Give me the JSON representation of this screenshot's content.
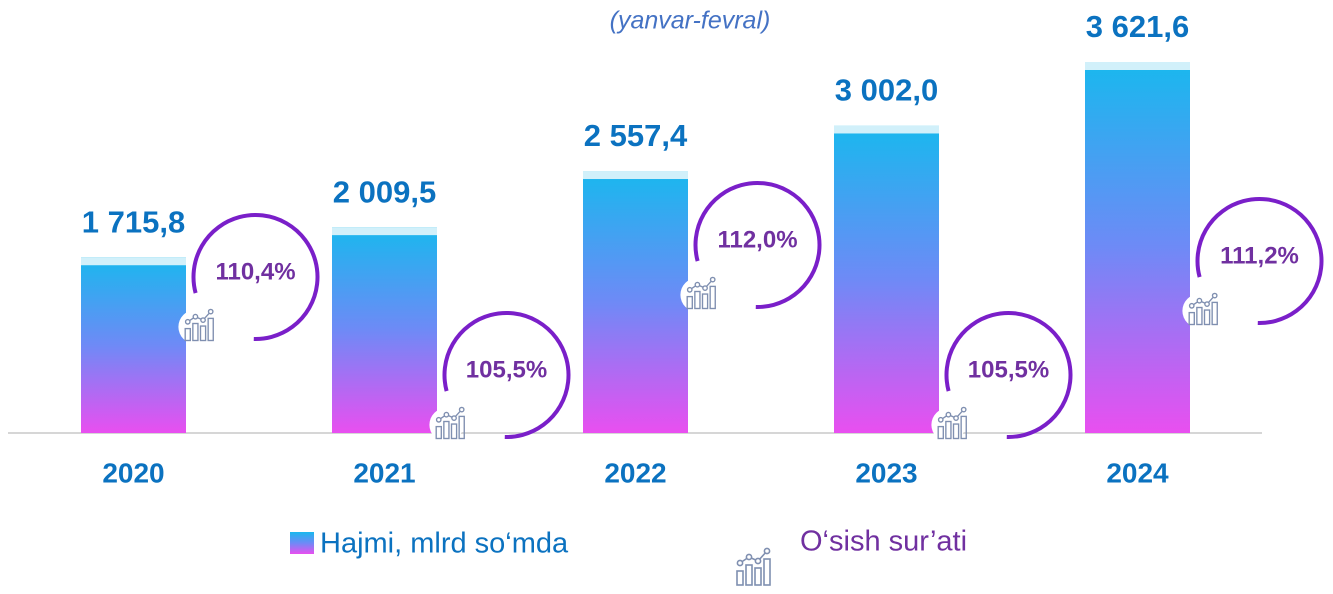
{
  "chart_data": {
    "type": "bar",
    "subtitle": "(yanvar-fevral)",
    "categories": [
      "2020",
      "2021",
      "2022",
      "2023",
      "2024"
    ],
    "series": [
      {
        "name": "Hajmi, mlrd so‘mda",
        "colors": [
          "#19b8ee",
          "#6e8af6",
          "#e94ff0"
        ],
        "values": [
          1715.8,
          2009.5,
          2557.4,
          3002.0,
          3621.6
        ],
        "value_labels": [
          "1 715,8",
          "2 009,5",
          "2 557,4",
          "3 002,0",
          "3 621,6"
        ]
      },
      {
        "name": "O‘sish sur’ati",
        "color": "#7030a0",
        "values": [
          110.4,
          105.5,
          112.0,
          105.5,
          111.2
        ],
        "value_labels": [
          "110,4%",
          "105,5%",
          "112,0%",
          "105,5%",
          "111,2%"
        ]
      }
    ]
  }
}
